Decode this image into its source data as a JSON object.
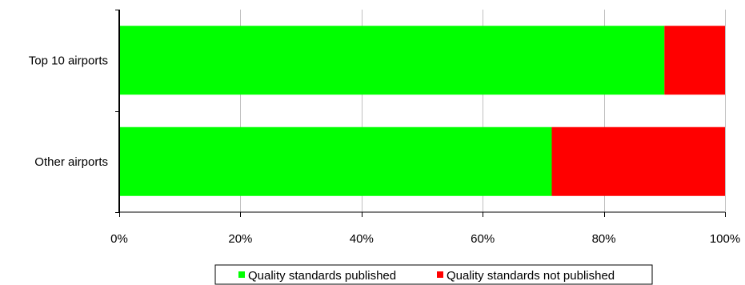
{
  "chart_data": {
    "type": "bar",
    "orientation": "horizontal",
    "stacked": "percent",
    "title": "",
    "xlabel": "",
    "ylabel": "",
    "categories": [
      "Top 10 airports",
      "Other airports"
    ],
    "series": [
      {
        "name": "Quality standards published",
        "values": [
          90,
          71.4
        ],
        "color": "#00ff00"
      },
      {
        "name": "Quality standards not published",
        "values": [
          10,
          28.6
        ],
        "color": "#ff0000"
      }
    ],
    "xlim": [
      0,
      100
    ],
    "xticks": [
      0,
      20,
      40,
      60,
      80,
      100
    ],
    "xtick_labels": [
      "0%",
      "20%",
      "40%",
      "60%",
      "80%",
      "100%"
    ],
    "grid": {
      "vertical": true,
      "color": "#c0c0c0"
    },
    "legend": {
      "position": "bottom"
    }
  }
}
